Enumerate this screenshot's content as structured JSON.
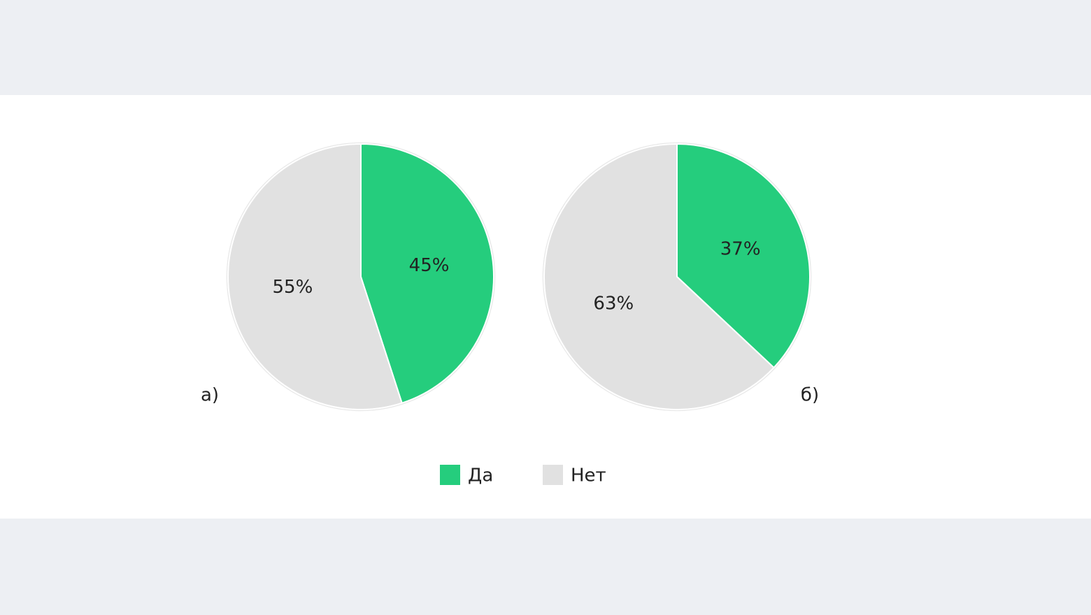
{
  "chart_data": [
    {
      "type": "pie",
      "label": "а)",
      "categories": [
        "Да",
        "Нет"
      ],
      "values": [
        45,
        55
      ],
      "value_labels": [
        "45%",
        "55%"
      ],
      "colors": [
        "#25cd7d",
        "#e1e1e1"
      ]
    },
    {
      "type": "pie",
      "label": "б)",
      "categories": [
        "Да",
        "Нет"
      ],
      "values": [
        37,
        63
      ],
      "value_labels": [
        "37%",
        "63%"
      ],
      "colors": [
        "#25cd7d",
        "#e1e1e1"
      ]
    }
  ]
}
